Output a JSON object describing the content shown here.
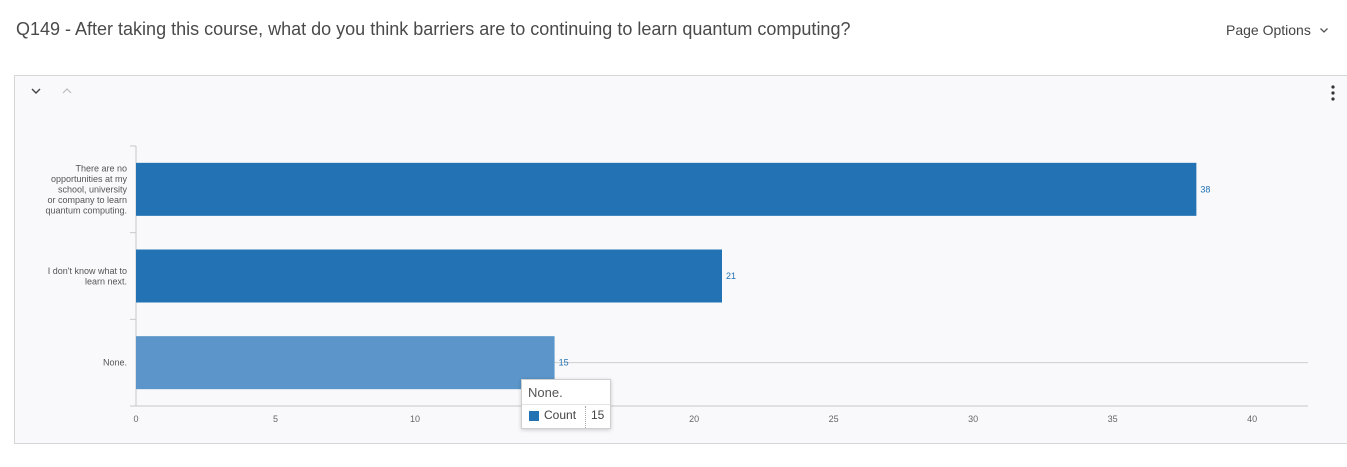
{
  "header": {
    "question_title": "Q149 - After taking this course, what do you think barriers are to continuing to learn quantum computing?",
    "page_options_label": "Page Options"
  },
  "icons": {
    "page_options": "chevron-down-icon",
    "collapse": "chevron-down-icon",
    "expand": "chevron-up-icon",
    "menu": "kebab-menu-icon"
  },
  "colors": {
    "bar": "#2272b4",
    "bar_hover": "#5b95c9",
    "label": "#2272b4"
  },
  "chart_data": {
    "type": "bar",
    "orientation": "horizontal",
    "categories": [
      [
        "There are no",
        "opportunities at my",
        "school, university",
        "or company to learn",
        "quantum computing."
      ],
      [
        "I don't know what to",
        "learn next."
      ],
      [
        "None."
      ]
    ],
    "series": [
      {
        "name": "Count",
        "values": [
          38,
          21,
          15
        ]
      }
    ],
    "xlim": [
      0,
      42
    ],
    "xticks": [
      0,
      5,
      10,
      15,
      20,
      25,
      30,
      35,
      40
    ],
    "data_labels": true,
    "highlighted_index": 2
  },
  "tooltip": {
    "title": "None.",
    "series_name": "Count",
    "value": "15"
  }
}
